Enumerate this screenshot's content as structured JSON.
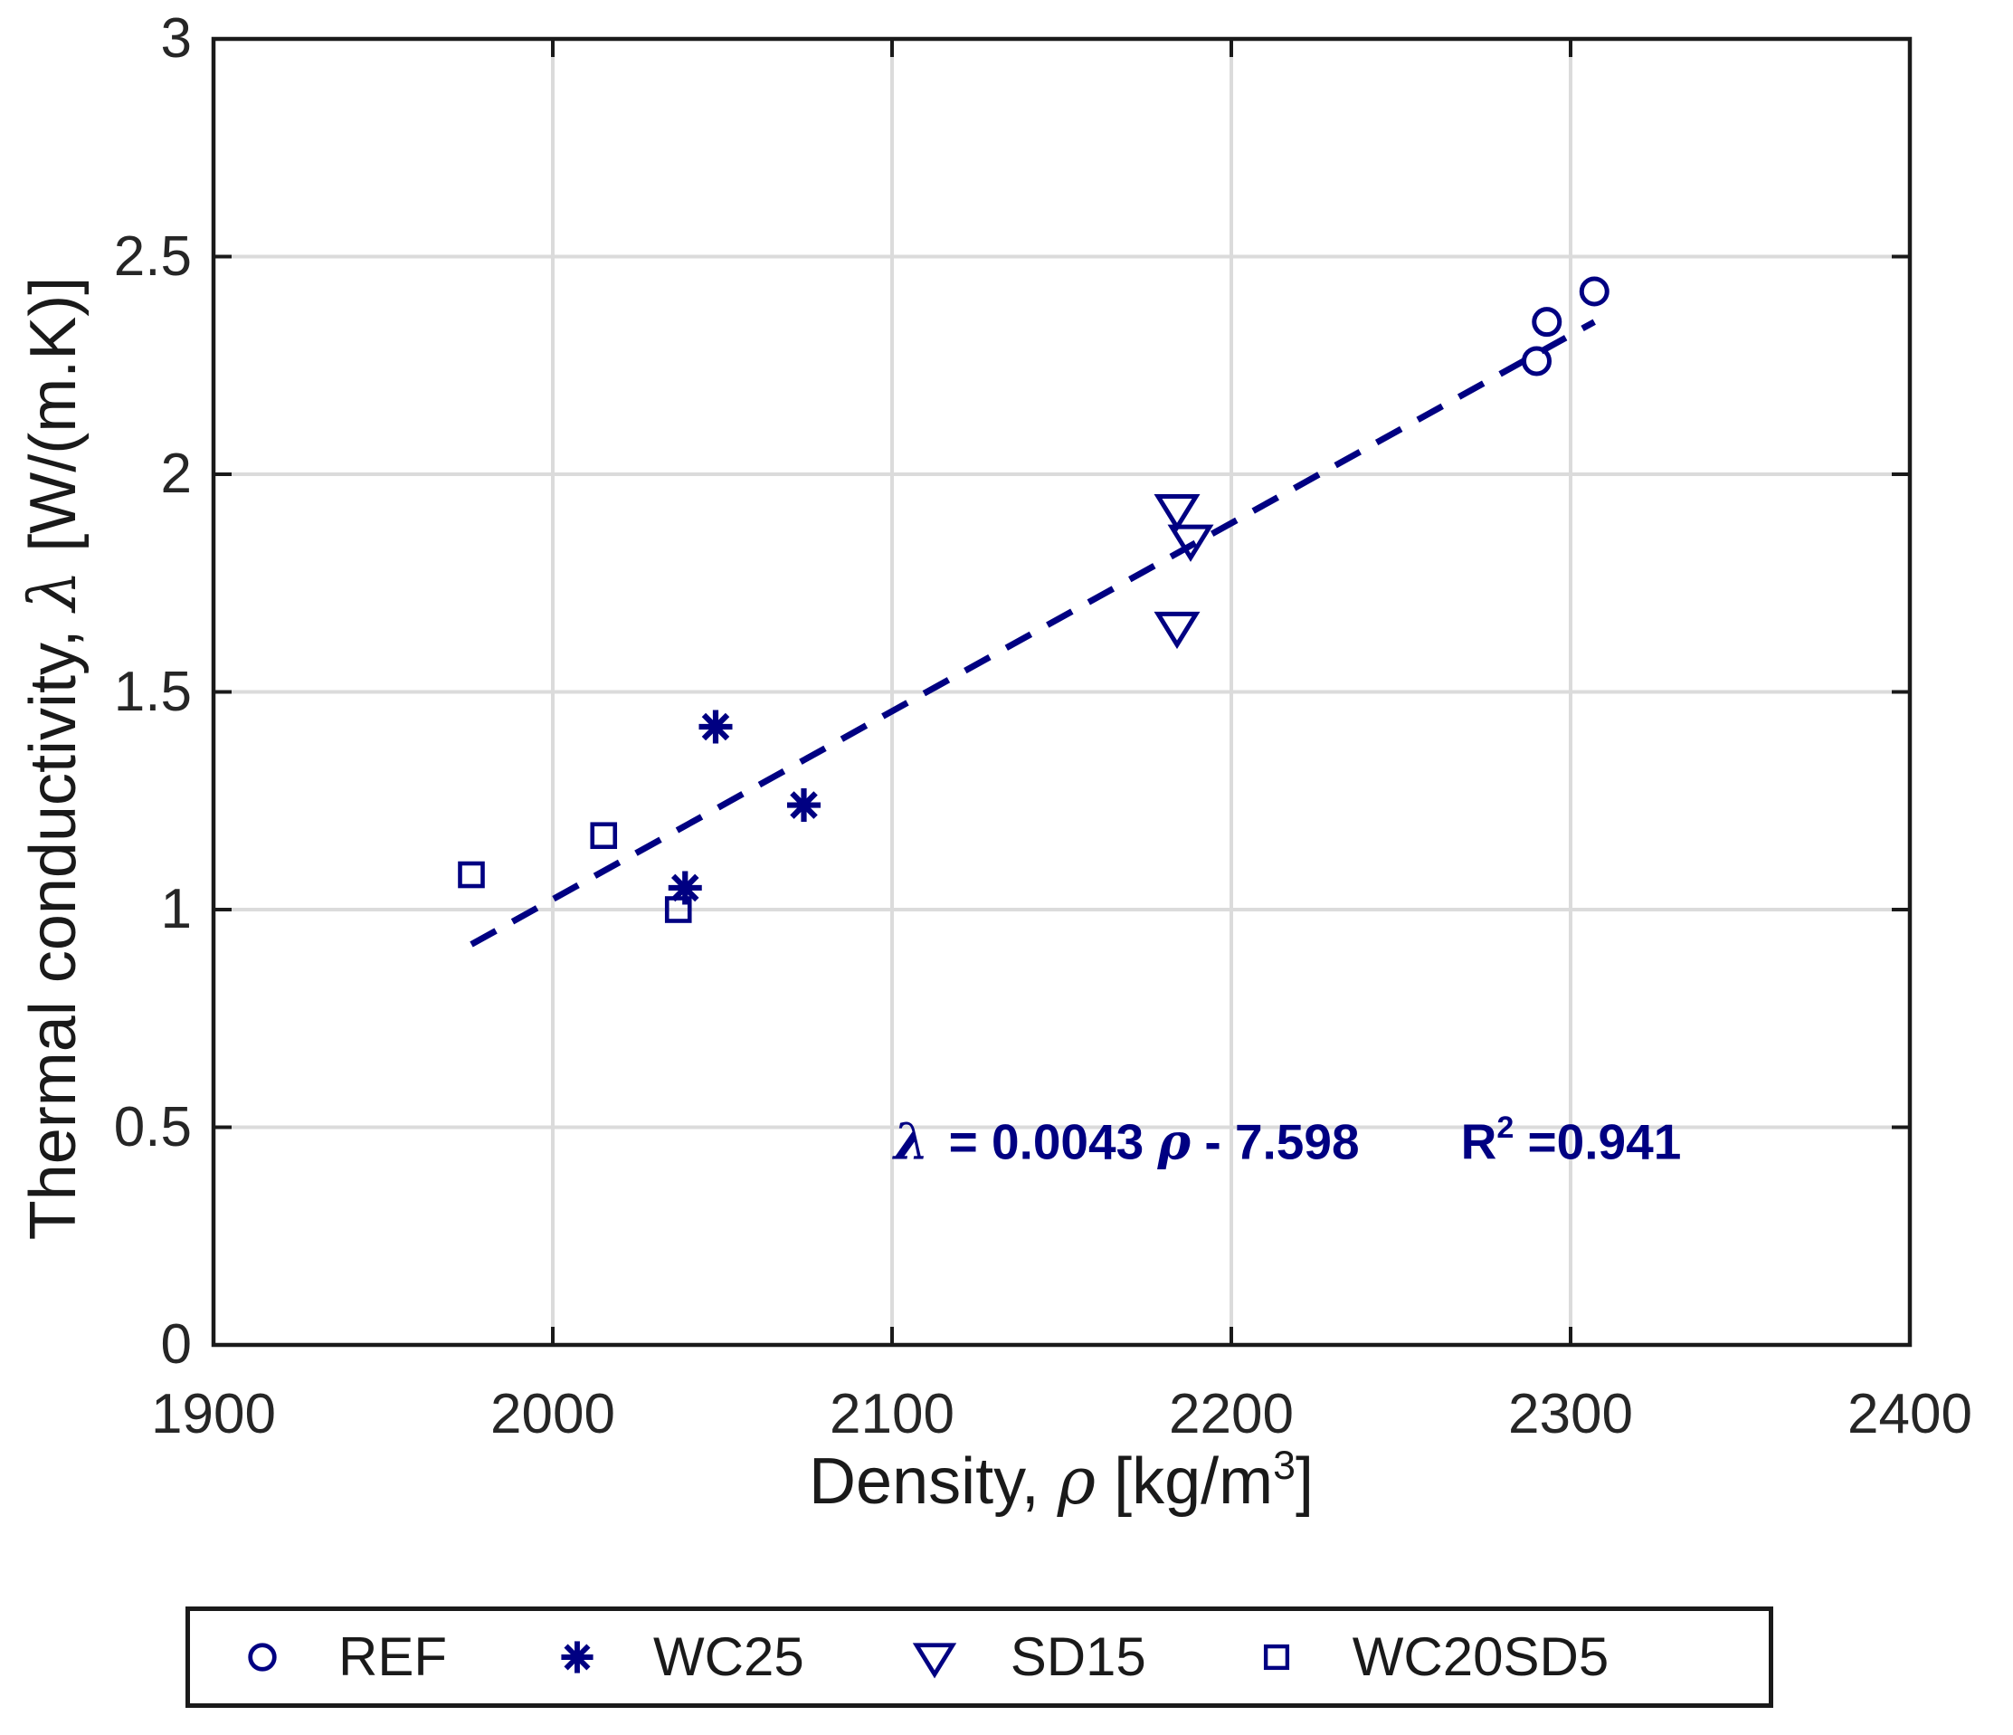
{
  "figure": {
    "background": "#ffffff",
    "marker_color": "#000082",
    "grid_color": "#dbdbdb",
    "axis_color": "#1a1a1a",
    "tick_label_color": "#262626",
    "annotation_color": "#000082"
  },
  "chart_data": {
    "type": "scatter",
    "title": "",
    "xlabel": "Density, ρ [kg/m³]",
    "ylabel": "Thermal conductivity, λ [W/(m.K)]",
    "xlim": [
      1900,
      2400
    ],
    "ylim": [
      0,
      3
    ],
    "x_ticks": [
      1900,
      2000,
      2100,
      2200,
      2300,
      2400
    ],
    "x_tick_labels": [
      "1900",
      "2000",
      "2100",
      "2200",
      "2300",
      "2400"
    ],
    "y_ticks": [
      0,
      0.5,
      1,
      1.5,
      2,
      2.5,
      3
    ],
    "y_tick_labels": [
      "0",
      "0.5",
      "1",
      "1.5",
      "2",
      "2.5",
      "3"
    ],
    "grid": true,
    "legend_position": "bottom",
    "series": [
      {
        "name": "REF",
        "marker": "circle",
        "points": [
          [
            2290,
            2.26
          ],
          [
            2293,
            2.35
          ],
          [
            2307,
            2.42
          ]
        ]
      },
      {
        "name": "WC25",
        "marker": "asterisk",
        "points": [
          [
            2048,
            1.42
          ],
          [
            2074,
            1.24
          ],
          [
            2039,
            1.05
          ]
        ]
      },
      {
        "name": "SD15",
        "marker": "triangle-down",
        "points": [
          [
            2184,
            1.92
          ],
          [
            2188,
            1.85
          ],
          [
            2184,
            1.65
          ]
        ]
      },
      {
        "name": "WC20SD5",
        "marker": "square",
        "points": [
          [
            1976,
            1.08
          ],
          [
            2015,
            1.17
          ],
          [
            2037,
            1.0
          ]
        ]
      }
    ],
    "trend_line": {
      "style": "dashed",
      "start": [
        1976,
        0.92
      ],
      "end": [
        2307,
        2.35
      ],
      "equation_text": "λ = 0.0043 ρ - 7.598",
      "r_squared_text": "R² =0.941"
    }
  },
  "labels": {
    "x": {
      "prefix": "Density, ",
      "symbol": "ρ",
      "unit_prefix": " [kg/m",
      "sup": "3",
      "unit_suffix": "]"
    },
    "y": {
      "prefix": "Thermal conductivity, ",
      "symbol": "λ",
      "suffix": " [W/(m.K)]"
    }
  },
  "annotation": {
    "lambda": "λ",
    "eq_mid": "= 0.0043 ",
    "rho": "ρ",
    "eq_tail": " - 7.598",
    "r": "R",
    "r_sup": "2",
    "r_val": " =0.941"
  }
}
